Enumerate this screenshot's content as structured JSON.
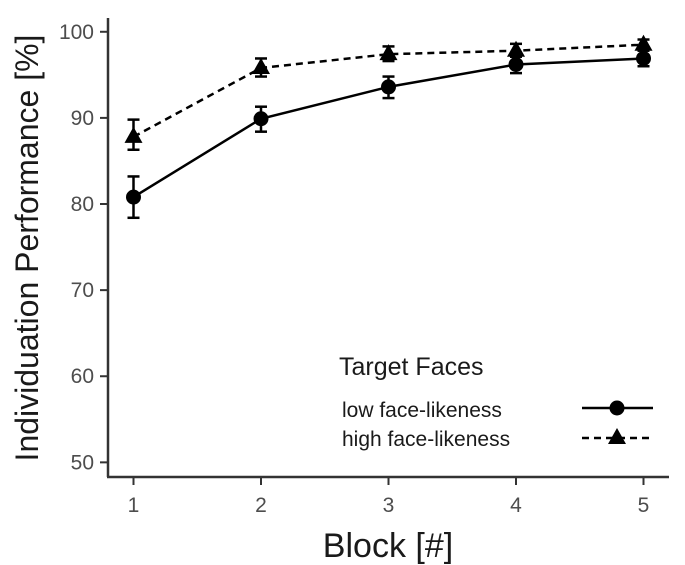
{
  "chart_data": {
    "type": "line",
    "title": "",
    "xlabel": "Block [#]",
    "ylabel": "Individuation Performance [%]",
    "x": [
      1,
      2,
      3,
      4,
      5
    ],
    "xticks": [
      "1",
      "2",
      "3",
      "4",
      "5"
    ],
    "yticks": [
      "50",
      "60",
      "70",
      "80",
      "90",
      "100"
    ],
    "xlim": [
      0.8,
      5.2
    ],
    "ylim": [
      48.3,
      101.6
    ],
    "grid": false,
    "legend": {
      "title": "Target Faces",
      "placement": "bottom-right",
      "entries": [
        "low face-likeness",
        "high face-likeness"
      ]
    },
    "series": [
      {
        "name": "low face-likeness",
        "marker": "circle",
        "linestyle": "solid",
        "values": [
          80.8,
          89.9,
          93.6,
          96.2,
          96.9
        ],
        "err_low": [
          78.4,
          88.4,
          92.3,
          95.2,
          96.0
        ],
        "err_high": [
          83.2,
          91.3,
          94.8,
          97.2,
          97.8
        ]
      },
      {
        "name": "high face-likeness",
        "marker": "triangle",
        "linestyle": "dashed",
        "values": [
          87.8,
          95.8,
          97.4,
          97.8,
          98.5
        ],
        "err_low": [
          86.3,
          94.8,
          96.6,
          97.1,
          97.9
        ],
        "err_high": [
          89.8,
          96.9,
          98.3,
          98.6,
          99.1
        ]
      }
    ]
  }
}
